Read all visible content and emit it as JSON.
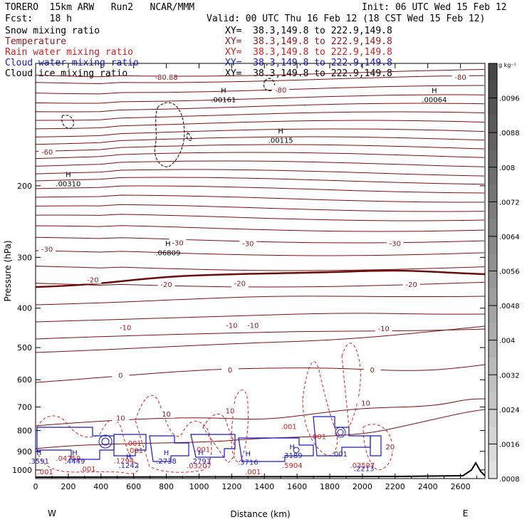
{
  "header": {
    "left_line1": "TORERO  15km ARW   Run2   NCAR/MMM",
    "left_line2": "Fcst:   18 h",
    "init": "Init: 06 UTC Wed 15 Feb 12",
    "valid": "Valid: 00 UTC Thu 16 Feb 12 (18 CST Wed 15 Feb 12)"
  },
  "fields": [
    {
      "name": "Snow mixing ratio",
      "color": "#000000",
      "xy": "XY=  38.3,149.8 to 222.9,149.8"
    },
    {
      "name": "Temperature",
      "color": "#8b1a1a",
      "xy": "XY=  38.3,149.8 to 222.9,149.8"
    },
    {
      "name": "Rain water mixing ratio",
      "color": "#d42020",
      "xy": "XY=  38.3,149.8 to 222.9,149.8"
    },
    {
      "name": "Cloud water mixing ratio",
      "color": "#1a1acc",
      "xy": "XY=  38.3,149.8 to 222.9,149.8"
    },
    {
      "name": "Cloud ice mixing ratio",
      "color": "#000000",
      "xy": "XY=  38.3,149.8 to 222.9,149.8"
    }
  ],
  "colorbar": {
    "unit": "g kg⁻¹",
    "ticks": [
      ".0096",
      ".0088",
      ".008",
      ".0072",
      ".0064",
      ".0056",
      ".0048",
      ".004",
      ".0032",
      ".0024",
      ".0016",
      ".0008"
    ]
  },
  "chart_data": {
    "type": "contour cross-section",
    "xlabel": "Distance (km)",
    "ylabel": "Pressure (hPa)",
    "xlim": [
      0,
      2750
    ],
    "ylim": [
      1050,
      100
    ],
    "y_scale": "log",
    "x_ticks": [
      0,
      200,
      400,
      600,
      800,
      1000,
      1200,
      1400,
      1600,
      1800,
      2000,
      2200,
      2400,
      2600
    ],
    "y_ticks": [
      200,
      300,
      400,
      500,
      600,
      700,
      800,
      900,
      1000
    ],
    "west_label": "W",
    "east_label": "E",
    "temperature_labels": [
      {
        "label": "-80",
        "x": 1500,
        "p": 116
      },
      {
        "label": "-80",
        "x": 2600,
        "p": 108
      },
      {
        "label": "-80.88",
        "x": 800,
        "p": 108
      },
      {
        "label": "-60",
        "x": 70,
        "p": 165
      },
      {
        "label": "-30",
        "x": 70,
        "p": 286
      },
      {
        "label": "-30",
        "x": 870,
        "p": 276
      },
      {
        "label": "-30",
        "x": 1300,
        "p": 277
      },
      {
        "label": "-30",
        "x": 2200,
        "p": 277
      },
      {
        "label": "-20",
        "x": 350,
        "p": 340
      },
      {
        "label": "-20",
        "x": 800,
        "p": 349
      },
      {
        "label": "-20",
        "x": 1250,
        "p": 347
      },
      {
        "label": "-20",
        "x": 2300,
        "p": 349
      },
      {
        "label": "-10",
        "x": 550,
        "p": 446
      },
      {
        "label": "-10",
        "x": 1200,
        "p": 440
      },
      {
        "label": "-10",
        "x": 1330,
        "p": 440
      },
      {
        "label": "-10",
        "x": 2130,
        "p": 448
      },
      {
        "label": "0",
        "x": 520,
        "p": 584
      },
      {
        "label": "0",
        "x": 1190,
        "p": 567
      },
      {
        "label": "0",
        "x": 2060,
        "p": 567
      },
      {
        "label": "10",
        "x": 520,
        "p": 743
      },
      {
        "label": "10",
        "x": 800,
        "p": 727
      },
      {
        "label": "10",
        "x": 1190,
        "p": 715
      },
      {
        "label": "10",
        "x": 2020,
        "p": 684
      },
      {
        "label": "20",
        "x": 2170,
        "p": 876
      }
    ],
    "snow_maxima": [
      {
        "label": "H",
        "value": ".00310",
        "x": 200,
        "p": 198
      },
      {
        "label": "H",
        "value": ".06809",
        "x": 810,
        "p": 293
      },
      {
        "label": "H",
        "value": ".00161",
        "x": 1150,
        "p": 123
      },
      {
        "label": "H",
        "value": ".00115",
        "x": 1500,
        "p": 155
      },
      {
        "label": "H",
        "value": ".00064",
        "x": 2440,
        "p": 123
      }
    ],
    "rain_labels": [
      {
        "value": ".001",
        "x": 600,
        "p": 859
      },
      {
        "value": ".001",
        "x": 610,
        "p": 893
      },
      {
        "value": ".001",
        "x": 1020,
        "p": 888
      },
      {
        "value": ".001",
        "x": 1550,
        "p": 780
      },
      {
        "value": ".001",
        "x": 1730,
        "p": 826
      },
      {
        "value": ".001",
        "x": 320,
        "p": 992
      },
      {
        "value": ".001",
        "x": 60,
        "p": 1008
      },
      {
        "value": ".001",
        "x": 1330,
        "p": 1008
      },
      {
        "value": ".04759",
        "x": 200,
        "p": 935
      },
      {
        "value": ".1294",
        "x": 540,
        "p": 948
      },
      {
        "value": ".03207",
        "x": 1000,
        "p": 975
      },
      {
        "value": ".5904",
        "x": 1570,
        "p": 973
      },
      {
        "value": ".03597",
        "x": 2000,
        "p": 973
      }
    ],
    "cloud_water_labels": [
      {
        "label": "H",
        "value": ".3591",
        "x": 20,
        "p": 950
      },
      {
        "label": "H",
        "value": ".4449",
        "x": 240,
        "p": 950
      },
      {
        "label": "H",
        "value": ".1242",
        "x": 570,
        "p": 972
      },
      {
        "label": "H",
        "value": ".2738",
        "x": 800,
        "p": 950
      },
      {
        "label": "H",
        "value": ".2793",
        "x": 1010,
        "p": 950
      },
      {
        "label": "H",
        "value": ".3716",
        "x": 1300,
        "p": 955
      },
      {
        "label": "H",
        "value": ".3189",
        "x": 1570,
        "p": 920
      },
      {
        "value": ".001",
        "x": 1860,
        "p": 912
      },
      {
        "value": ".2213",
        "x": 2010,
        "p": 990
      }
    ]
  }
}
